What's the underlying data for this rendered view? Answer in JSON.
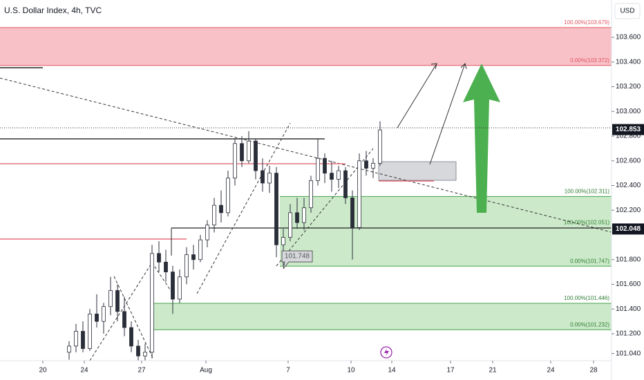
{
  "chart_data": {
    "type": "candlestick",
    "title": "U.S. Dollar Index, 4h, TVC",
    "currency": "USD",
    "color": "#2a2e39",
    "xlim": [
      0,
      88.5
    ],
    "ylim": [
      100.982,
      103.902
    ],
    "xticks": [
      {
        "value": 6.2,
        "label": "20"
      },
      {
        "value": 12.2,
        "label": "24"
      },
      {
        "value": 20.5,
        "label": "27"
      },
      {
        "value": 29.8,
        "label": "Aug"
      },
      {
        "value": 41.7,
        "label": "7"
      },
      {
        "value": 50.8,
        "label": "10"
      },
      {
        "value": 56.7,
        "label": "14"
      },
      {
        "value": 65.2,
        "label": "17"
      },
      {
        "value": 71.3,
        "label": "21"
      },
      {
        "value": 79.7,
        "label": "24"
      },
      {
        "value": 85.9,
        "label": "28"
      }
    ],
    "yticks": [
      {
        "value": 101.04,
        "label": "101.040"
      },
      {
        "value": 101.2,
        "label": "101.200"
      },
      {
        "value": 101.4,
        "label": "101.400"
      },
      {
        "value": 101.6,
        "label": "101.600"
      },
      {
        "value": 101.8,
        "label": "101.800"
      },
      {
        "value": 102.2,
        "label": "102.200"
      },
      {
        "value": 102.4,
        "label": "102.400"
      },
      {
        "value": 102.6,
        "label": "102.600"
      },
      {
        "value": 102.8,
        "label": "102.800"
      },
      {
        "value": 103,
        "label": "103.000"
      },
      {
        "value": 103.2,
        "label": "103.200"
      },
      {
        "value": 103.4,
        "label": "103.400"
      },
      {
        "value": 103.6,
        "label": "103.600"
      }
    ],
    "x": [
      10,
      11,
      12,
      13,
      14,
      15,
      16,
      17,
      18,
      19,
      20,
      21,
      22,
      23,
      24,
      25,
      26,
      27,
      28,
      29,
      30,
      31,
      32,
      33,
      34,
      35,
      36,
      37,
      38,
      39,
      40,
      41,
      42,
      43,
      44,
      45,
      46,
      47,
      48,
      49,
      50,
      51,
      52,
      53,
      54,
      55
    ],
    "open": [
      101.05,
      101.1,
      101.22,
      101.08,
      101.36,
      101.3,
      101.42,
      101.55,
      101.38,
      101.25,
      101.1,
      101.02,
      101.05,
      101.85,
      101.78,
      101.7,
      101.48,
      101.66,
      101.84,
      101.8,
      101.96,
      102.08,
      102.24,
      102.18,
      102.46,
      102.74,
      102.6,
      102.76,
      102.52,
      102.42,
      102.5,
      101.92,
      101.98,
      102.18,
      102.1,
      102.22,
      102.44,
      102.62,
      102.5,
      102.45,
      102.52,
      102.3,
      102.06,
      102.6,
      102.54,
      102.58
    ],
    "high": [
      101.14,
      101.28,
      101.3,
      101.4,
      101.52,
      101.45,
      101.66,
      101.6,
      101.5,
      101.3,
      101.15,
      101.12,
      101.92,
      101.95,
      101.88,
      101.75,
      101.72,
      101.9,
      101.92,
      102.0,
      102.12,
      102.3,
      102.36,
      102.52,
      102.78,
      102.8,
      102.84,
      102.78,
      102.62,
      102.56,
      102.55,
      102.05,
      102.25,
      102.3,
      102.3,
      102.48,
      102.78,
      102.66,
      102.6,
      102.56,
      102.55,
      102.36,
      102.66,
      102.68,
      102.62,
      102.92
    ],
    "low": [
      100.99,
      101.05,
      101.05,
      101.06,
      101.25,
      101.2,
      101.35,
      101.3,
      101.18,
      101.05,
      100.98,
      100.98,
      101.0,
      101.7,
      101.62,
      101.36,
      101.45,
      101.6,
      101.72,
      101.78,
      101.9,
      102.02,
      102.1,
      102.15,
      102.4,
      102.55,
      102.58,
      102.45,
      102.35,
      102.34,
      101.82,
      101.75,
      101.95,
      102.05,
      102.04,
      102.18,
      102.4,
      102.42,
      102.35,
      102.38,
      102.25,
      101.8,
      102.04,
      102.48,
      102.46,
      102.56
    ],
    "close": [
      101.1,
      101.22,
      101.08,
      101.36,
      101.3,
      101.42,
      101.55,
      101.38,
      101.25,
      101.1,
      101.02,
      101.05,
      101.85,
      101.78,
      101.7,
      101.48,
      101.66,
      101.84,
      101.8,
      101.96,
      102.08,
      102.24,
      102.18,
      102.46,
      102.74,
      102.6,
      102.76,
      102.52,
      102.42,
      102.5,
      101.92,
      101.98,
      102.18,
      102.1,
      102.22,
      102.44,
      102.62,
      102.5,
      102.45,
      102.52,
      102.3,
      102.06,
      102.6,
      102.54,
      102.58,
      102.85
    ],
    "zones": [
      {
        "x0": 0,
        "top": 103.679,
        "bottom": 103.372,
        "color": "#f7b6bd",
        "stroke": "#e05562",
        "top_label": "100.00%(103.679)",
        "bottom_label": "0.00%(103.372)",
        "text_color": "#e05562"
      },
      {
        "x0": 40.5,
        "top": 102.311,
        "bottom": 101.747,
        "color": "#c3e6c1",
        "stroke": "#43a047",
        "top_label": "100.00%(102.311)",
        "bottom_label": "0.00%(101.747)",
        "text_color": "#2e7d32"
      },
      {
        "x0": 22.3,
        "top": 101.446,
        "bottom": 101.232,
        "color": "#c3e6c1",
        "stroke": "#43a047",
        "top_label": "100.00%(101.446)",
        "bottom_label": "0.00%(101.232)",
        "text_color": "#2e7d32"
      }
    ],
    "inner_label": "100.00%(102.051)",
    "price_labels": [
      {
        "value": 102.853,
        "label": "102.853"
      },
      {
        "value": 102.048,
        "label": "102.048"
      }
    ],
    "callout": {
      "value": 101.748,
      "label": "101.748"
    }
  }
}
